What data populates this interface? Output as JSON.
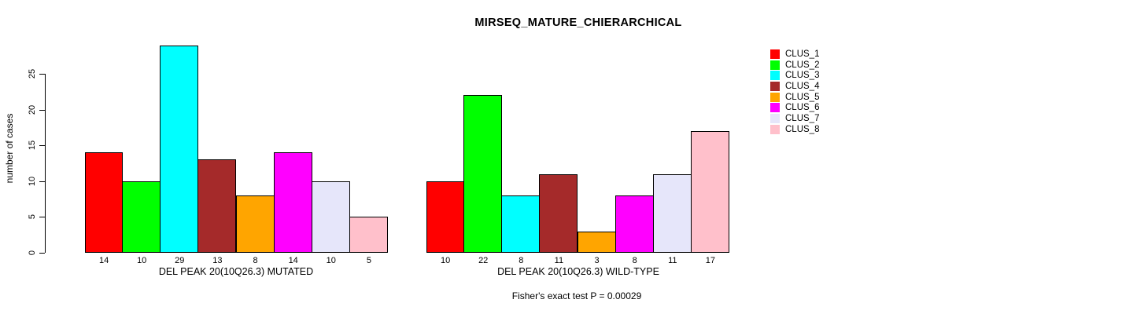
{
  "chart_data": {
    "type": "bar",
    "title": "MIRSEQ_MATURE_CHIERARCHICAL",
    "ylabel": "number of cases",
    "ylim": [
      0,
      29
    ],
    "yticks": [
      0,
      5,
      10,
      15,
      20,
      25
    ],
    "grid": false,
    "legend_position": "right",
    "footer": "Fisher's exact test P = 0.00029",
    "clusters": [
      "CLUS_1",
      "CLUS_2",
      "CLUS_3",
      "CLUS_4",
      "CLUS_5",
      "CLUS_6",
      "CLUS_7",
      "CLUS_8"
    ],
    "colors": [
      "#FF0000",
      "#00FF00",
      "#00FFFF",
      "#A52A2A",
      "#FFA500",
      "#FF00FF",
      "#E6E6FA",
      "#FFC0CB"
    ],
    "groups": [
      {
        "xlabel": "DEL PEAK 20(10Q26.3) MUTATED",
        "values": [
          14,
          10,
          29,
          13,
          8,
          14,
          10,
          5
        ]
      },
      {
        "xlabel": "DEL PEAK 20(10Q26.3) WILD-TYPE",
        "values": [
          10,
          22,
          8,
          11,
          3,
          8,
          11,
          17
        ]
      }
    ]
  }
}
